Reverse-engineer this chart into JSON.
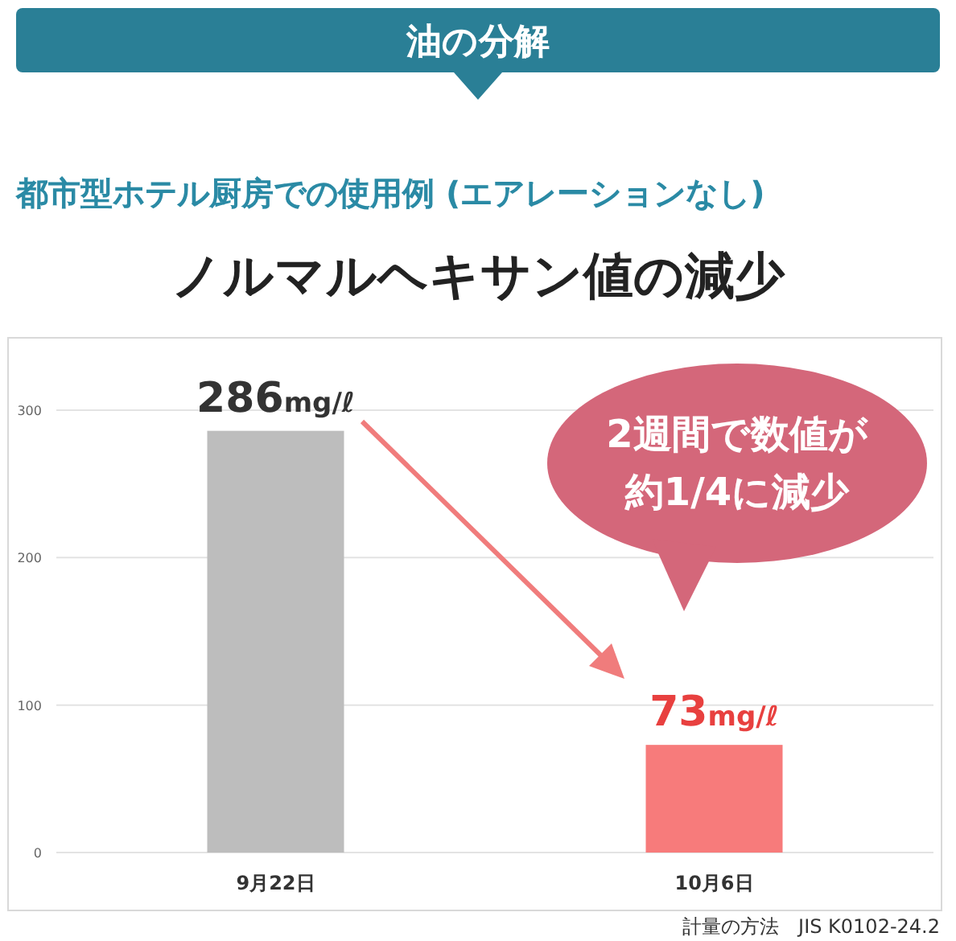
{
  "chart_data": {
    "type": "bar",
    "title": "油の分解",
    "subtitle": "都市型ホテル厨房での使用例 (エアレーションなし)",
    "categories": [
      "9月22日",
      "10月6日"
    ],
    "values": [
      286,
      73
    ],
    "colors": [
      "#bdbdbd",
      "#f77b7b"
    ],
    "value_labels": [
      "286mg/ℓ",
      "73mg/ℓ"
    ],
    "ylim": [
      0,
      300
    ],
    "yticks": [
      0,
      100,
      200,
      300
    ],
    "grid": "y",
    "annotations": [
      "ノルマルヘキサン値の減少",
      "2週間で数値が",
      "約1/4に減少",
      "計量の方法　JIS K0102-24.2"
    ]
  }
}
